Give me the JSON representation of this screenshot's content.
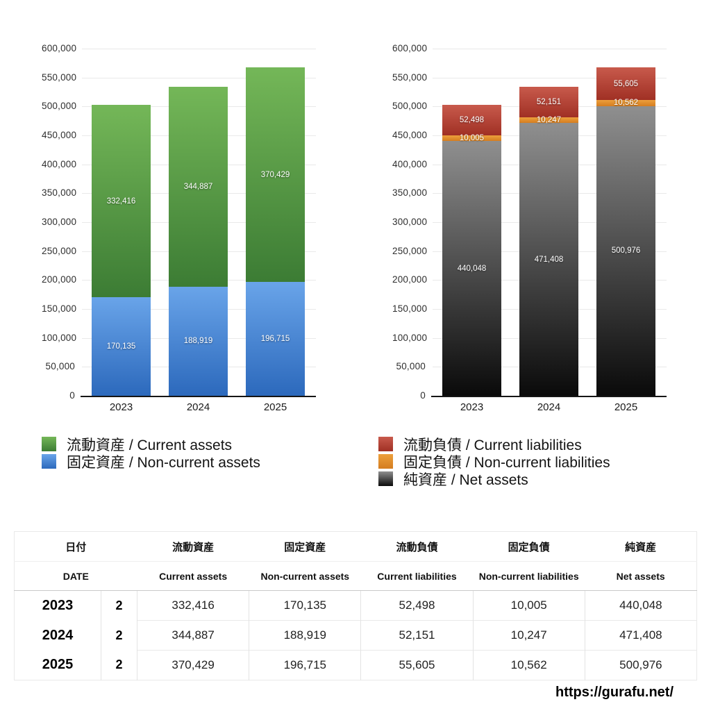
{
  "page": {
    "background": "#ffffff",
    "url_text": "https://gurafu.net/"
  },
  "chart_data": [
    {
      "type": "bar",
      "stacked": true,
      "categories": [
        "2023",
        "2024",
        "2025"
      ],
      "series": [
        {
          "name": "固定資産 / Non-current assets",
          "values": [
            170135,
            188919,
            196715
          ],
          "color_top": "#69a4e9",
          "color_bottom": "#2c69bc"
        },
        {
          "name": "流動資産 / Current assets",
          "values": [
            332416,
            344887,
            370429
          ],
          "color_top": "#74b758",
          "color_bottom": "#3c7c34"
        }
      ],
      "ylim": [
        0,
        600000
      ],
      "ytick_step": 50000,
      "grid": true,
      "legend_position": "bottom-left",
      "data_labels": true
    },
    {
      "type": "bar",
      "stacked": true,
      "categories": [
        "2023",
        "2024",
        "2025"
      ],
      "series": [
        {
          "name": "純資産 / Net assets",
          "values": [
            440048,
            471408,
            500976
          ],
          "color_top": "#8f8f8f",
          "color_bottom": "#0a0a0a"
        },
        {
          "name": "固定負債 / Non-current liabilities",
          "values": [
            10005,
            10247,
            10562
          ],
          "color_top": "#eda03c",
          "color_bottom": "#d47d20"
        },
        {
          "name": "流動負債 / Current liabilities",
          "values": [
            52498,
            52151,
            55605
          ],
          "color_top": "#c85a4c",
          "color_bottom": "#a03024"
        }
      ],
      "ylim": [
        0,
        600000
      ],
      "ytick_step": 50000,
      "grid": true,
      "legend_position": "bottom-left",
      "data_labels": true
    }
  ],
  "legends": {
    "left": [
      {
        "label": "流動資産 / Current assets",
        "color_top": "#74b758",
        "color_bottom": "#3c7c34"
      },
      {
        "label": "固定資産 / Non-current assets",
        "color_top": "#69a4e9",
        "color_bottom": "#2c69bc"
      }
    ],
    "right": [
      {
        "label": "流動負債 / Current liabilities",
        "color_top": "#c85a4c",
        "color_bottom": "#a03024"
      },
      {
        "label": "固定負債 / Non-current liabilities",
        "color_top": "#eda03c",
        "color_bottom": "#d47d20"
      },
      {
        "label": "純資産 / Net assets",
        "color_top": "#8f8f8f",
        "color_bottom": "#0a0a0a"
      }
    ]
  },
  "table": {
    "header_row1": [
      "日付",
      "流動資産",
      "固定資産",
      "流動負債",
      "固定負債",
      "純資産"
    ],
    "header_row2": [
      "DATE",
      "Current assets",
      "Non-current assets",
      "Current liabilities",
      "Non-current liabilities",
      "Net assets"
    ],
    "rows": [
      {
        "year": "2023",
        "month": "2",
        "values": [
          "332,416",
          "170,135",
          "52,498",
          "10,005",
          "440,048"
        ]
      },
      {
        "year": "2024",
        "month": "2",
        "values": [
          "344,887",
          "188,919",
          "52,151",
          "10,247",
          "471,408"
        ]
      },
      {
        "year": "2025",
        "month": "2",
        "values": [
          "370,429",
          "196,715",
          "55,605",
          "10,562",
          "500,976"
        ]
      }
    ]
  }
}
